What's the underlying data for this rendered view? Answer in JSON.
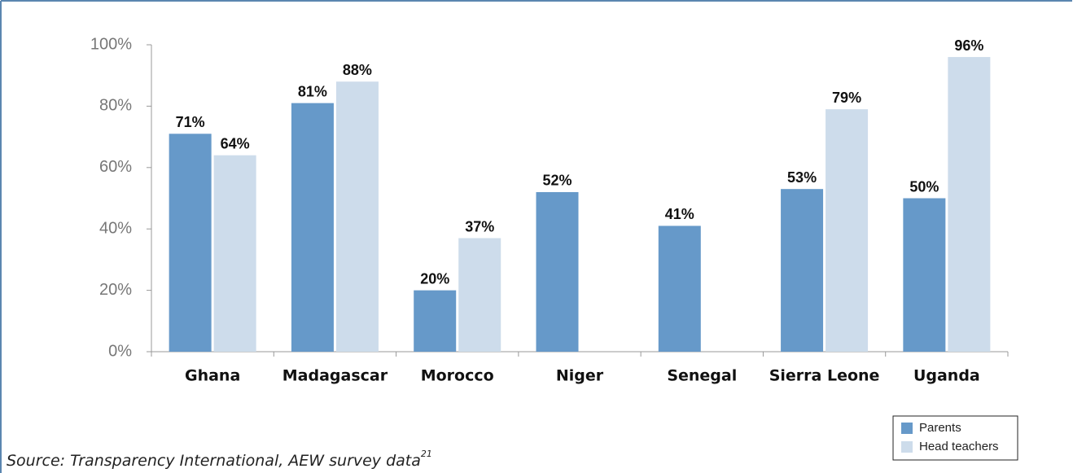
{
  "chart_data": {
    "type": "bar",
    "categories": [
      "Ghana",
      "Madagascar",
      "Morocco",
      "Niger",
      "Senegal",
      "Sierra Leone",
      "Uganda"
    ],
    "series": [
      {
        "name": "Parents",
        "color": "#6699c9",
        "values": [
          71,
          81,
          20,
          52,
          41,
          53,
          50
        ],
        "value_labels": [
          "71%",
          "81%",
          "20%",
          "52%",
          "41%",
          "53%",
          "50%"
        ]
      },
      {
        "name": "Head teachers",
        "color": "#cddceb",
        "values": [
          64,
          88,
          37,
          null,
          null,
          79,
          96
        ],
        "value_labels": [
          "64%",
          "88%",
          "37%",
          null,
          null,
          "79%",
          "96%"
        ]
      }
    ],
    "ylim": [
      0,
      100
    ],
    "yticks": [
      {
        "value": 0,
        "label": "0%"
      },
      {
        "value": 20,
        "label": "20%"
      },
      {
        "value": 40,
        "label": "40%"
      },
      {
        "value": 60,
        "label": "60%"
      },
      {
        "value": 80,
        "label": "80%"
      },
      {
        "value": 100,
        "label": "100%"
      }
    ],
    "legend": "bottom-right",
    "source": "Source: Transparency International, AEW survey data",
    "source_ref": "21"
  }
}
